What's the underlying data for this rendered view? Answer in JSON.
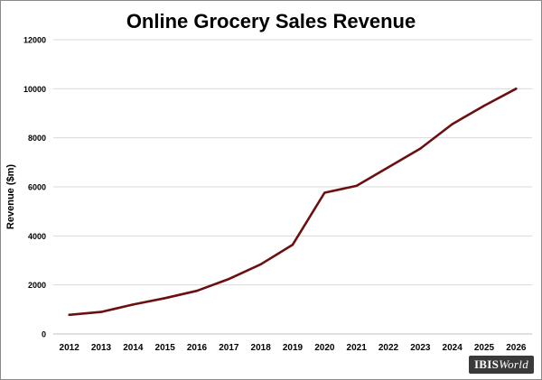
{
  "chart_data": {
    "type": "line",
    "title": "Online Grocery Sales Revenue",
    "xlabel": "",
    "ylabel": "Revenue ($m)",
    "ylim": [
      0,
      12000
    ],
    "yticks": [
      "0",
      "2000",
      "4000",
      "6000",
      "8000",
      "10000",
      "12000"
    ],
    "x": [
      "2012",
      "2013",
      "2014",
      "2015",
      "2016",
      "2017",
      "2018",
      "2019",
      "2020",
      "2021",
      "2022",
      "2023",
      "2024",
      "2025",
      "2026"
    ],
    "series": [
      {
        "values": [
          780,
          900,
          1200,
          1460,
          1760,
          2240,
          2840,
          3640,
          5760,
          6040,
          6800,
          7560,
          8560,
          9310,
          10000
        ]
      }
    ],
    "grid": true,
    "line_color": "#6b1010"
  },
  "brand": {
    "main": "IBIS",
    "suffix": "World"
  }
}
